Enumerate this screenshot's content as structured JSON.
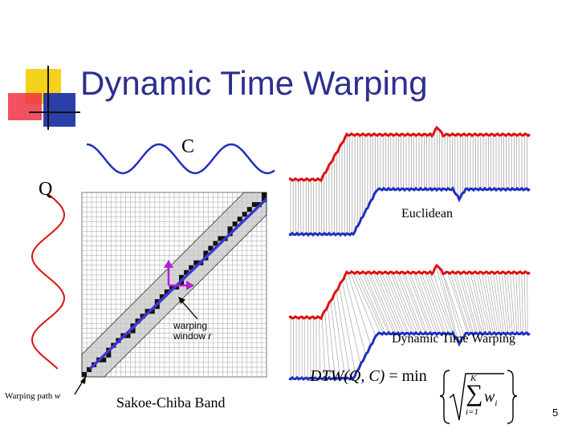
{
  "title": "Dynamic Time Warping",
  "labels": {
    "c": "C",
    "q": "Q",
    "euclidean": "Euclidean",
    "dtw": "Dynamic Time Warping",
    "warping_window_line1": "warping",
    "warping_window_line2": "window ",
    "warping_window_var": "r",
    "band": "Sakoe-Chiba Band",
    "warping_path": "Warping path ",
    "warping_path_var": "w"
  },
  "formula": {
    "lhs": "DTW",
    "args": "(Q, C)",
    "equals": " = min",
    "upper": "K",
    "index": "i=1",
    "term": "w",
    "sub": "i"
  },
  "page_number": "5",
  "colors": {
    "title": "#2b2f8f",
    "series_c": "#1f2fbf",
    "series_q": "#dd1111",
    "path": "#3a3ad0",
    "band": "#c8c8c8",
    "window_arrows": "#b21fd6",
    "logo_yellow": "#f5d21a",
    "logo_blue": "#2b3fa8",
    "logo_red": "#ee3344"
  }
}
